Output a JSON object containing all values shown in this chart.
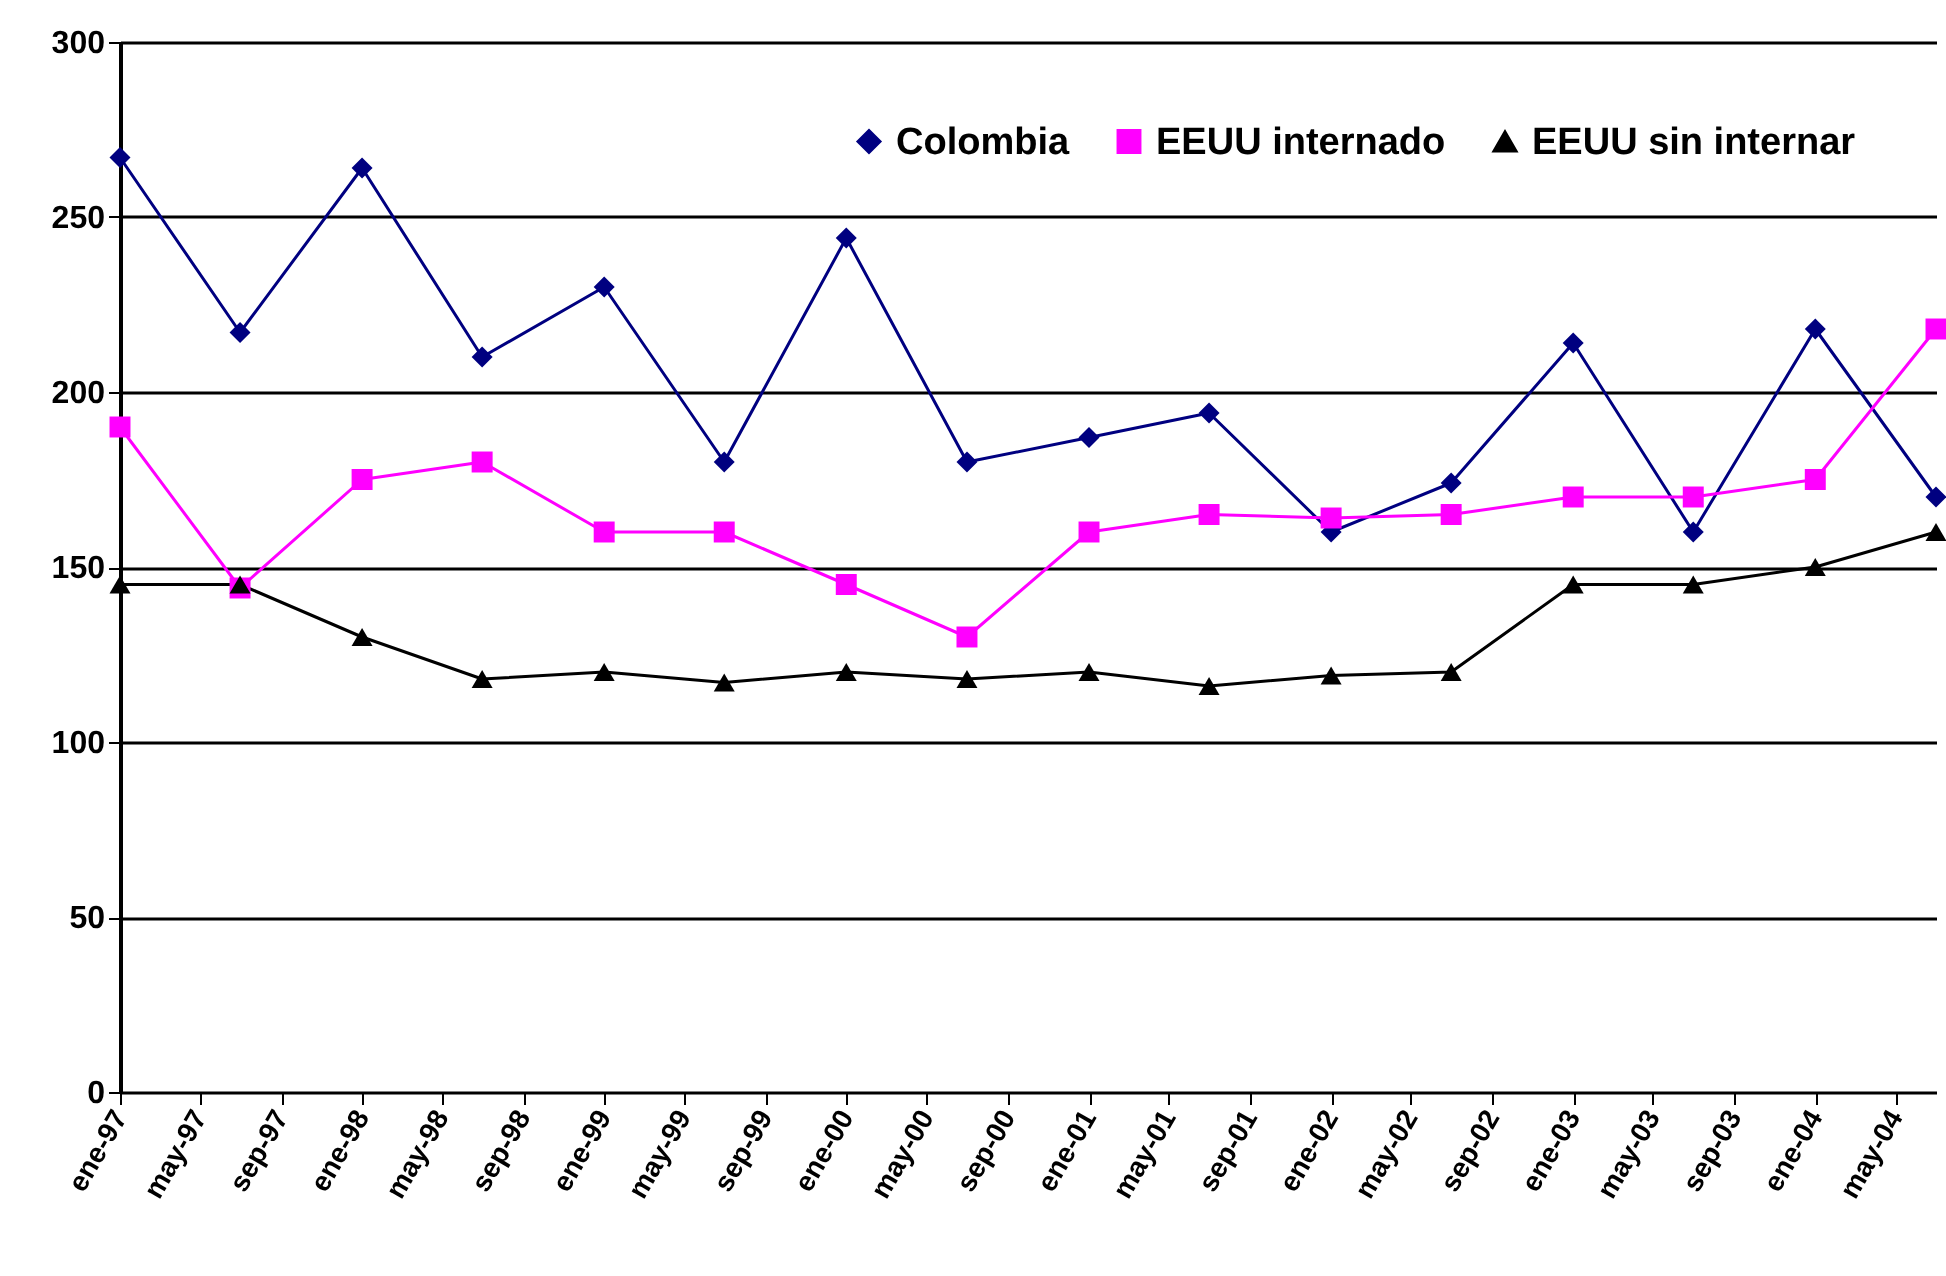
{
  "chart_data": {
    "type": "line",
    "x": [
      "1997-01",
      "1997-07",
      "1998-01",
      "1998-07",
      "1999-01",
      "1999-07",
      "2000-01",
      "2000-07",
      "2001-01",
      "2001-07",
      "2002-01",
      "2002-07",
      "2003-01",
      "2003-07",
      "2004-01",
      "2004-07"
    ],
    "series": [
      {
        "name": "Colombia",
        "color": "#000080",
        "marker": "diamond",
        "values": [
          267,
          217,
          264,
          210,
          230,
          180,
          244,
          180,
          187,
          194,
          160,
          174,
          214,
          160,
          218,
          170
        ]
      },
      {
        "name": "EEUU internado",
        "color": "#ff00ff",
        "marker": "square",
        "values": [
          190,
          144,
          175,
          180,
          160,
          160,
          145,
          130,
          160,
          165,
          164,
          165,
          170,
          170,
          175,
          218
        ]
      },
      {
        "name": "EEUU sin internar",
        "color": "#000000",
        "marker": "triangle",
        "values": [
          145,
          145,
          130,
          118,
          120,
          117,
          120,
          118,
          120,
          116,
          119,
          120,
          145,
          145,
          150,
          160
        ]
      }
    ],
    "xlim": [
      "1997-01",
      "2004-07"
    ],
    "xticks": [
      {
        "value": "1997-01",
        "label": "ene-97"
      },
      {
        "value": "1997-05",
        "label": "may-97"
      },
      {
        "value": "1997-09",
        "label": "sep-97"
      },
      {
        "value": "1998-01",
        "label": "ene-98"
      },
      {
        "value": "1998-05",
        "label": "may-98"
      },
      {
        "value": "1998-09",
        "label": "sep-98"
      },
      {
        "value": "1999-01",
        "label": "ene-99"
      },
      {
        "value": "1999-05",
        "label": "may-99"
      },
      {
        "value": "1999-09",
        "label": "sep-99"
      },
      {
        "value": "2000-01",
        "label": "ene-00"
      },
      {
        "value": "2000-05",
        "label": "may-00"
      },
      {
        "value": "2000-09",
        "label": "sep-00"
      },
      {
        "value": "2001-01",
        "label": "ene-01"
      },
      {
        "value": "2001-05",
        "label": "may-01"
      },
      {
        "value": "2001-09",
        "label": "sep-01"
      },
      {
        "value": "2002-01",
        "label": "ene-02"
      },
      {
        "value": "2002-05",
        "label": "may-02"
      },
      {
        "value": "2002-09",
        "label": "sep-02"
      },
      {
        "value": "2003-01",
        "label": "ene-03"
      },
      {
        "value": "2003-05",
        "label": "may-03"
      },
      {
        "value": "2003-09",
        "label": "sep-03"
      },
      {
        "value": "2004-01",
        "label": "ene-04"
      },
      {
        "value": "2004-05",
        "label": "may-04"
      }
    ],
    "ylim": [
      0,
      300
    ],
    "yticks": [
      0,
      50,
      100,
      150,
      200,
      250,
      300
    ],
    "grid": "y",
    "legend": "top right"
  }
}
